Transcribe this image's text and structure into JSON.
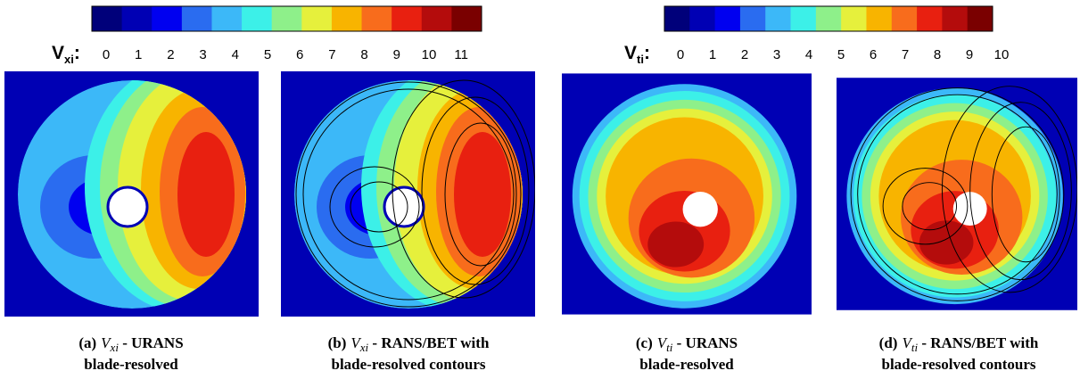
{
  "colorbars": [
    {
      "symbol": "V",
      "subscript": "xi",
      "colon": ":",
      "colors": [
        "#00007a",
        "#0000b4",
        "#0000f0",
        "#2a6cf0",
        "#3cb8f8",
        "#3cf0e8",
        "#8ef08a",
        "#e6f03c",
        "#f8b400",
        "#f86c1c",
        "#e82010",
        "#b40c0c",
        "#7a0000"
      ],
      "ticks": [
        0,
        1,
        2,
        3,
        4,
        5,
        6,
        7,
        8,
        9,
        10,
        11
      ]
    },
    {
      "symbol": "V",
      "subscript": "ti",
      "colon": ":",
      "colors": [
        "#00007a",
        "#0000b4",
        "#0000f0",
        "#2a6cf0",
        "#3cb8f8",
        "#3cf0e8",
        "#8ef08a",
        "#e6f03c",
        "#f8b400",
        "#f86c1c",
        "#e82010",
        "#b40c0c",
        "#7a0000"
      ],
      "ticks": [
        0,
        1,
        2,
        3,
        4,
        5,
        6,
        7,
        8,
        9,
        10
      ]
    }
  ],
  "captions": [
    {
      "label": "(a)",
      "symbol": "V",
      "subscript": "xi",
      "title": " - URANS",
      "line2": "blade-resolved"
    },
    {
      "label": "(b)",
      "symbol": "V",
      "subscript": "xi",
      "title": " - RANS/BET with",
      "line2": "blade-resolved contours"
    },
    {
      "label": "(c)",
      "symbol": "V",
      "subscript": "ti",
      "title": " - URANS",
      "line2": "blade-resolved"
    },
    {
      "label": "(d)",
      "symbol": "V",
      "subscript": "ti",
      "title": " - RANS/BET with",
      "line2": "blade-resolved contours"
    }
  ]
}
